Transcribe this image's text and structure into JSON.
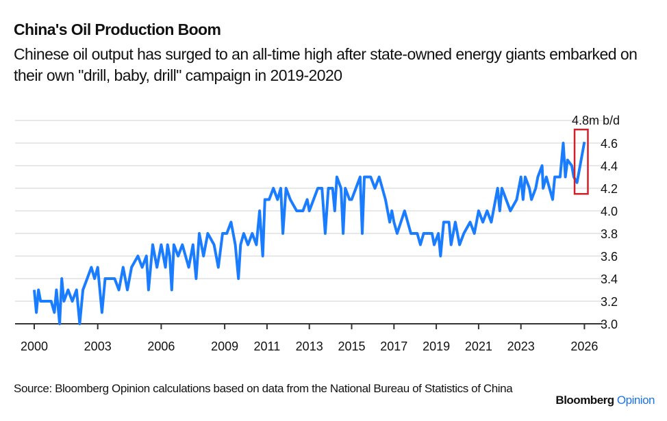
{
  "header": {
    "title": "China's Oil Production Boom",
    "subtitle": "Chinese oil output has surged to an all-time high after state-owned energy giants embarked on their own \"drill, baby, drill\" campaign in 2019-2020"
  },
  "footer": {
    "source": "Source: Bloomberg Opinion calculations based on data from the National Bureau of Statistics of China",
    "logo_main": "Bloomberg",
    "logo_accent": "Opinion"
  },
  "colors": {
    "line": "#1a7cff",
    "highlight_box": "#d0202a",
    "grid": "#e8e8e8",
    "axis": "#333333",
    "logo_accent": "#1a73e8"
  },
  "chart_data": {
    "type": "line",
    "title": "China's Oil Production Boom",
    "unit_label": "4.8m b/d",
    "xlabel": "",
    "ylabel": "",
    "xlim": [
      1999.1,
      2027
    ],
    "ylim": [
      3.0,
      4.8
    ],
    "grid": true,
    "y_axis_side": "right",
    "x_ticks": [
      "2000",
      "2003",
      "2006",
      "2009",
      "2011",
      "2013",
      "2015",
      "2017",
      "2019",
      "2021",
      "2023",
      "2026"
    ],
    "y_ticks": [
      "3.0",
      "3.2",
      "3.4",
      "3.6",
      "3.8",
      "4.0",
      "4.2",
      "4.4",
      "4.6"
    ],
    "highlight": {
      "x_range": [
        2025.6,
        2026.1
      ],
      "y_range": [
        4.15,
        4.72
      ],
      "description_shape": "red rectangle"
    },
    "series": [
      {
        "points": [
          [
            2000.0,
            3.3
          ],
          [
            2000.1,
            3.1
          ],
          [
            2000.2,
            3.3
          ],
          [
            2000.3,
            3.2
          ],
          [
            2000.8,
            3.2
          ],
          [
            2000.95,
            3.1
          ],
          [
            2001.05,
            3.3
          ],
          [
            2001.2,
            3.0
          ],
          [
            2001.3,
            3.4
          ],
          [
            2001.4,
            3.2
          ],
          [
            2001.6,
            3.3
          ],
          [
            2001.8,
            3.2
          ],
          [
            2002.0,
            3.3
          ],
          [
            2002.15,
            3.0
          ],
          [
            2002.3,
            3.3
          ],
          [
            2002.5,
            3.4
          ],
          [
            2002.7,
            3.5
          ],
          [
            2002.85,
            3.4
          ],
          [
            2003.0,
            3.5
          ],
          [
            2003.1,
            3.3
          ],
          [
            2003.2,
            3.1
          ],
          [
            2003.35,
            3.4
          ],
          [
            2003.8,
            3.4
          ],
          [
            2004.0,
            3.3
          ],
          [
            2004.2,
            3.5
          ],
          [
            2004.4,
            3.3
          ],
          [
            2004.6,
            3.5
          ],
          [
            2004.9,
            3.6
          ],
          [
            2005.1,
            3.5
          ],
          [
            2005.3,
            3.6
          ],
          [
            2005.4,
            3.3
          ],
          [
            2005.6,
            3.7
          ],
          [
            2005.8,
            3.5
          ],
          [
            2006.0,
            3.7
          ],
          [
            2006.2,
            3.5
          ],
          [
            2006.3,
            3.7
          ],
          [
            2006.4,
            3.6
          ],
          [
            2006.5,
            3.3
          ],
          [
            2006.6,
            3.7
          ],
          [
            2006.8,
            3.6
          ],
          [
            2007.0,
            3.7
          ],
          [
            2007.3,
            3.5
          ],
          [
            2007.5,
            3.7
          ],
          [
            2007.65,
            3.4
          ],
          [
            2007.8,
            3.8
          ],
          [
            2008.0,
            3.6
          ],
          [
            2008.2,
            3.8
          ],
          [
            2008.5,
            3.7
          ],
          [
            2008.7,
            3.5
          ],
          [
            2008.9,
            3.8
          ],
          [
            2009.1,
            3.8
          ],
          [
            2009.3,
            3.9
          ],
          [
            2009.5,
            3.7
          ],
          [
            2009.65,
            3.4
          ],
          [
            2009.75,
            3.7
          ],
          [
            2009.9,
            3.8
          ],
          [
            2010.1,
            3.7
          ],
          [
            2010.3,
            3.8
          ],
          [
            2010.5,
            3.7
          ],
          [
            2010.65,
            4.0
          ],
          [
            2010.8,
            3.6
          ],
          [
            2010.9,
            4.1
          ],
          [
            2011.1,
            4.1
          ],
          [
            2011.3,
            4.2
          ],
          [
            2011.5,
            4.1
          ],
          [
            2011.65,
            4.2
          ],
          [
            2011.75,
            3.8
          ],
          [
            2011.9,
            4.2
          ],
          [
            2012.1,
            4.1
          ],
          [
            2012.4,
            4.0
          ],
          [
            2012.7,
            4.0
          ],
          [
            2012.9,
            4.1
          ],
          [
            2013.0,
            4.0
          ],
          [
            2013.2,
            4.1
          ],
          [
            2013.4,
            4.2
          ],
          [
            2013.6,
            4.2
          ],
          [
            2013.75,
            3.8
          ],
          [
            2013.9,
            4.2
          ],
          [
            2014.1,
            4.2
          ],
          [
            2014.2,
            4.0
          ],
          [
            2014.3,
            4.3
          ],
          [
            2014.5,
            4.2
          ],
          [
            2014.6,
            3.8
          ],
          [
            2014.7,
            4.2
          ],
          [
            2014.9,
            4.1
          ],
          [
            2015.0,
            4.1
          ],
          [
            2015.2,
            4.2
          ],
          [
            2015.4,
            4.3
          ],
          [
            2015.5,
            3.8
          ],
          [
            2015.6,
            4.3
          ],
          [
            2015.9,
            4.3
          ],
          [
            2016.1,
            4.2
          ],
          [
            2016.3,
            4.3
          ],
          [
            2016.6,
            4.1
          ],
          [
            2016.8,
            3.9
          ],
          [
            2016.9,
            4.0
          ],
          [
            2017.0,
            3.9
          ],
          [
            2017.15,
            3.8
          ],
          [
            2017.5,
            4.0
          ],
          [
            2017.8,
            3.8
          ],
          [
            2018.1,
            3.8
          ],
          [
            2018.25,
            3.7
          ],
          [
            2018.4,
            3.8
          ],
          [
            2018.8,
            3.8
          ],
          [
            2018.9,
            3.7
          ],
          [
            2019.1,
            3.8
          ],
          [
            2019.2,
            3.6
          ],
          [
            2019.35,
            3.9
          ],
          [
            2019.6,
            3.9
          ],
          [
            2019.7,
            3.7
          ],
          [
            2019.9,
            3.9
          ],
          [
            2020.1,
            3.7
          ],
          [
            2020.3,
            3.8
          ],
          [
            2020.6,
            3.9
          ],
          [
            2020.8,
            3.8
          ],
          [
            2021.0,
            4.0
          ],
          [
            2021.2,
            3.9
          ],
          [
            2021.4,
            4.0
          ],
          [
            2021.6,
            3.9
          ],
          [
            2021.9,
            4.2
          ],
          [
            2022.0,
            4.0
          ],
          [
            2022.1,
            4.2
          ],
          [
            2022.3,
            4.1
          ],
          [
            2022.5,
            4.0
          ],
          [
            2022.8,
            4.1
          ],
          [
            2023.0,
            4.3
          ],
          [
            2023.1,
            4.1
          ],
          [
            2023.2,
            4.3
          ],
          [
            2023.4,
            4.2
          ],
          [
            2023.5,
            4.1
          ],
          [
            2023.7,
            4.2
          ],
          [
            2023.8,
            4.3
          ],
          [
            2024.0,
            4.4
          ],
          [
            2024.05,
            4.2
          ],
          [
            2024.2,
            4.3
          ],
          [
            2024.5,
            4.1
          ],
          [
            2024.6,
            4.3
          ],
          [
            2024.85,
            4.3
          ],
          [
            2025.0,
            4.6
          ],
          [
            2025.1,
            4.3
          ],
          [
            2025.2,
            4.45
          ],
          [
            2025.4,
            4.4
          ],
          [
            2025.5,
            4.3
          ],
          [
            2025.65,
            4.25
          ],
          [
            2026.0,
            4.61
          ]
        ]
      }
    ]
  }
}
